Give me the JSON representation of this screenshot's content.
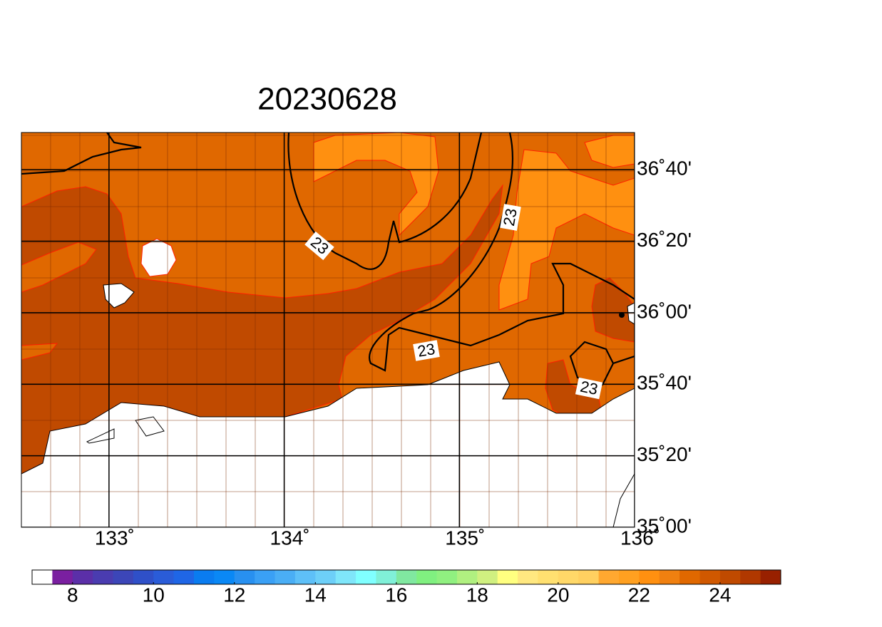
{
  "map": {
    "title": "20230628",
    "lonlim": [
      132.5,
      136
    ],
    "latlim": [
      35,
      36.84
    ],
    "lon_ticks": [
      {
        "value": 133,
        "label": "133˚"
      },
      {
        "value": 134,
        "label": "134˚"
      },
      {
        "value": 135,
        "label": "135˚"
      },
      {
        "value": 136,
        "label": "136˚"
      }
    ],
    "lat_ticks": [
      {
        "value": 35,
        "label": "35˚00'"
      },
      {
        "value": 35.3333,
        "label": "35˚20'"
      },
      {
        "value": 35.6667,
        "label": "35˚40'"
      },
      {
        "value": 36,
        "label": "36˚00'"
      },
      {
        "value": 36.3333,
        "label": "36˚20'"
      },
      {
        "value": 36.6667,
        "label": "36˚40'"
      }
    ],
    "contour_labels": [
      23,
      23,
      23,
      23
    ]
  },
  "colorbar": {
    "lim": [
      7,
      25.5
    ],
    "colors": [
      "#ffffff",
      "#7a1fa0",
      "#5b2fa8",
      "#4a3cb0",
      "#3c46b8",
      "#2f50c8",
      "#2a5cd8",
      "#1f66e6",
      "#0a7cf0",
      "#0a88f5",
      "#2890f0",
      "#3aa0f5",
      "#4aaef5",
      "#5ec0f8",
      "#6dcff8",
      "#7fe6fa",
      "#80ffff",
      "#80f0d8",
      "#80e8a0",
      "#80f080",
      "#90f080",
      "#b0f080",
      "#d0f080",
      "#ffff80",
      "#ffe880",
      "#ffe070",
      "#ffd868",
      "#ffd060",
      "#ffa830",
      "#ffa020",
      "#ff9010",
      "#f08010",
      "#e06800",
      "#d05800",
      "#c04a00",
      "#b03800",
      "#982000"
    ],
    "ticks": [
      8,
      10,
      12,
      14,
      16,
      18,
      20,
      22,
      24
    ]
  }
}
